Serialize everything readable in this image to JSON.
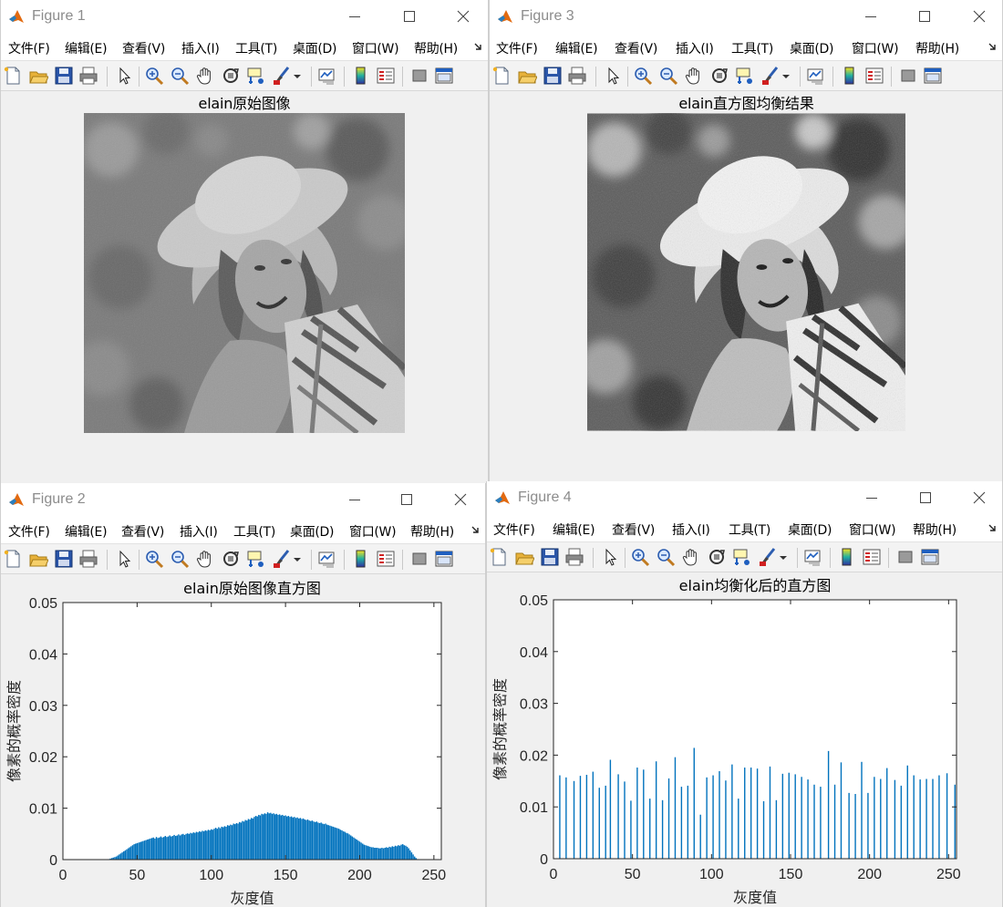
{
  "menus": [
    "文件(F)",
    "编辑(E)",
    "查看(V)",
    "插入(I)",
    "工具(T)",
    "桌面(D)",
    "窗口(W)",
    "帮助(H)"
  ],
  "toolbar_icons": [
    "new-figure-icon",
    "open-file-icon",
    "save-icon",
    "print-icon",
    "pointer-icon",
    "zoom-in-icon",
    "zoom-out-icon",
    "pan-hand-icon",
    "rotate-3d-icon",
    "data-cursor-icon",
    "brush-icon",
    "dropdown-arrow-icon",
    "link-plot-icon",
    "colorbar-icon",
    "legend-icon",
    "hide-tools-icon",
    "show-tools-icon"
  ],
  "colors": {
    "bar": "#0072bd",
    "window_bg": "#f0f0f0",
    "title_gray": "#8c8c8c"
  },
  "figures": {
    "fig1": {
      "title": "Figure 1",
      "axes_title": "elain原始图像"
    },
    "fig2": {
      "title": "Figure 2",
      "axes_title": "elain原始图像直方图"
    },
    "fig3": {
      "title": "Figure 3",
      "axes_title": "elain直方图均衡结果"
    },
    "fig4": {
      "title": "Figure 4",
      "axes_title": "elain均衡化后的直方图"
    }
  },
  "chart_data": [
    {
      "type": "bar",
      "title": "elain原始图像直方图",
      "xlabel": "灰度值",
      "ylabel": "像素的概率密度",
      "xlim": [
        0,
        255
      ],
      "ylim": [
        0,
        0.05
      ],
      "xticks": [
        0,
        50,
        100,
        150,
        200,
        250
      ],
      "yticks": [
        0,
        0.01,
        0.02,
        0.03,
        0.04,
        0.05
      ],
      "ytick_labels": [
        "0",
        "0.01",
        "0.02",
        "0.03",
        "0.04",
        "0.05"
      ],
      "bin_start": 0,
      "values": [
        0,
        0,
        0,
        0,
        0,
        0,
        0,
        0,
        0,
        0,
        0,
        0,
        0,
        0,
        0,
        0,
        0,
        0,
        0,
        0,
        0,
        0,
        0,
        0,
        0,
        0,
        0,
        0,
        0,
        0,
        0,
        0.0001,
        0.0002,
        0.0003,
        0.0004,
        0.0005,
        0.0006,
        0.0008,
        0.001,
        0.0012,
        0.0014,
        0.0016,
        0.0018,
        0.002,
        0.0022,
        0.0024,
        0.0026,
        0.0028,
        0.003,
        0.0031,
        0.0032,
        0.0033,
        0.0034,
        0.0035,
        0.0036,
        0.0037,
        0.0038,
        0.0039,
        0.004,
        0.0041,
        0.0042,
        0.0043,
        0.0041,
        0.0044,
        0.0042,
        0.0043,
        0.0045,
        0.0043,
        0.0044,
        0.0046,
        0.0044,
        0.0045,
        0.0047,
        0.0045,
        0.0046,
        0.0048,
        0.0046,
        0.0047,
        0.0049,
        0.0047,
        0.0049,
        0.005,
        0.0048,
        0.005,
        0.0051,
        0.005,
        0.0052,
        0.0051,
        0.0053,
        0.0052,
        0.0054,
        0.0053,
        0.0055,
        0.0054,
        0.0056,
        0.0055,
        0.0057,
        0.0056,
        0.0058,
        0.0057,
        0.0059,
        0.0058,
        0.006,
        0.0062,
        0.006,
        0.0063,
        0.0061,
        0.0064,
        0.0063,
        0.0065,
        0.0064,
        0.0067,
        0.0066,
        0.0068,
        0.0067,
        0.007,
        0.0069,
        0.0071,
        0.007,
        0.0073,
        0.0072,
        0.0075,
        0.0074,
        0.0077,
        0.0076,
        0.0079,
        0.0078,
        0.0081,
        0.008,
        0.0083,
        0.0085,
        0.0084,
        0.0087,
        0.0086,
        0.0089,
        0.0088,
        0.009,
        0.0089,
        0.0092,
        0.009,
        0.0091,
        0.0089,
        0.009,
        0.0088,
        0.0089,
        0.0087,
        0.0088,
        0.0086,
        0.0087,
        0.0085,
        0.0086,
        0.0084,
        0.0085,
        0.0083,
        0.0084,
        0.0082,
        0.0083,
        0.0081,
        0.0082,
        0.008,
        0.0081,
        0.0079,
        0.008,
        0.0078,
        0.0077,
        0.0078,
        0.0076,
        0.0075,
        0.0076,
        0.0074,
        0.0073,
        0.0074,
        0.0072,
        0.0071,
        0.0072,
        0.007,
        0.0069,
        0.007,
        0.0068,
        0.0067,
        0.0066,
        0.0065,
        0.0064,
        0.0063,
        0.0062,
        0.0061,
        0.006,
        0.0058,
        0.0057,
        0.0055,
        0.0054,
        0.0052,
        0.0051,
        0.0049,
        0.0047,
        0.0045,
        0.0043,
        0.0041,
        0.0039,
        0.0037,
        0.0035,
        0.0033,
        0.0031,
        0.0029,
        0.0028,
        0.0027,
        0.0026,
        0.0025,
        0.0024,
        0.0024,
        0.0023,
        0.0023,
        0.0023,
        0.0022,
        0.0022,
        0.0023,
        0.0022,
        0.0023,
        0.0024,
        0.0023,
        0.0025,
        0.0024,
        0.0026,
        0.0025,
        0.0027,
        0.0026,
        0.0028,
        0.0027,
        0.0029,
        0.003,
        0.0028,
        0.0027,
        0.0025,
        0.0022,
        0.0018,
        0.0014,
        0.001,
        0.0006,
        0.0003,
        0.0001,
        0,
        0,
        0,
        0,
        0,
        0,
        0,
        0,
        0,
        0,
        0,
        0,
        0,
        0,
        0
      ]
    },
    {
      "type": "bar",
      "title": "elain均衡化后的直方图",
      "xlabel": "灰度值",
      "ylabel": "像素的概率密度",
      "xlim": [
        0,
        255
      ],
      "ylim": [
        0,
        0.05
      ],
      "xticks": [
        0,
        50,
        100,
        150,
        200,
        250
      ],
      "yticks": [
        0,
        0.01,
        0.02,
        0.03,
        0.04,
        0.05
      ],
      "ytick_labels": [
        "0",
        "0.01",
        "0.02",
        "0.03",
        "0.04",
        "0.05"
      ],
      "spikes": [
        {
          "x": 4,
          "y": 0.0161
        },
        {
          "x": 8,
          "y": 0.0157
        },
        {
          "x": 13,
          "y": 0.015
        },
        {
          "x": 17,
          "y": 0.016
        },
        {
          "x": 21,
          "y": 0.0162
        },
        {
          "x": 25,
          "y": 0.0168
        },
        {
          "x": 29,
          "y": 0.0137
        },
        {
          "x": 33,
          "y": 0.0141
        },
        {
          "x": 36,
          "y": 0.0191
        },
        {
          "x": 41,
          "y": 0.0163
        },
        {
          "x": 45,
          "y": 0.0149
        },
        {
          "x": 49,
          "y": 0.0112
        },
        {
          "x": 53,
          "y": 0.0176
        },
        {
          "x": 57,
          "y": 0.0172
        },
        {
          "x": 61,
          "y": 0.0116
        },
        {
          "x": 65,
          "y": 0.0188
        },
        {
          "x": 69,
          "y": 0.0113
        },
        {
          "x": 73,
          "y": 0.0155
        },
        {
          "x": 77,
          "y": 0.0196
        },
        {
          "x": 81,
          "y": 0.0139
        },
        {
          "x": 85,
          "y": 0.0141
        },
        {
          "x": 89,
          "y": 0.0214
        },
        {
          "x": 93,
          "y": 0.0085
        },
        {
          "x": 97,
          "y": 0.0157
        },
        {
          "x": 101,
          "y": 0.0161
        },
        {
          "x": 105,
          "y": 0.0169
        },
        {
          "x": 109,
          "y": 0.0151
        },
        {
          "x": 113,
          "y": 0.0182
        },
        {
          "x": 117,
          "y": 0.0116
        },
        {
          "x": 121,
          "y": 0.0176
        },
        {
          "x": 125,
          "y": 0.0176
        },
        {
          "x": 129,
          "y": 0.0174
        },
        {
          "x": 133,
          "y": 0.0111
        },
        {
          "x": 137,
          "y": 0.0178
        },
        {
          "x": 141,
          "y": 0.0113
        },
        {
          "x": 145,
          "y": 0.0164
        },
        {
          "x": 149,
          "y": 0.0166
        },
        {
          "x": 153,
          "y": 0.0163
        },
        {
          "x": 157,
          "y": 0.0158
        },
        {
          "x": 161,
          "y": 0.0153
        },
        {
          "x": 165,
          "y": 0.0143
        },
        {
          "x": 169,
          "y": 0.0139
        },
        {
          "x": 174,
          "y": 0.0208
        },
        {
          "x": 178,
          "y": 0.0143
        },
        {
          "x": 182,
          "y": 0.0186
        },
        {
          "x": 187,
          "y": 0.0127
        },
        {
          "x": 191,
          "y": 0.0125
        },
        {
          "x": 195,
          "y": 0.0187
        },
        {
          "x": 199,
          "y": 0.0127
        },
        {
          "x": 203,
          "y": 0.0158
        },
        {
          "x": 207,
          "y": 0.0154
        },
        {
          "x": 211,
          "y": 0.0175
        },
        {
          "x": 216,
          "y": 0.0152
        },
        {
          "x": 220,
          "y": 0.0141
        },
        {
          "x": 224,
          "y": 0.018
        },
        {
          "x": 228,
          "y": 0.0161
        },
        {
          "x": 232,
          "y": 0.0153
        },
        {
          "x": 236,
          "y": 0.0154
        },
        {
          "x": 240,
          "y": 0.0154
        },
        {
          "x": 244,
          "y": 0.0161
        },
        {
          "x": 249,
          "y": 0.0165
        },
        {
          "x": 254,
          "y": 0.0143
        }
      ]
    }
  ]
}
